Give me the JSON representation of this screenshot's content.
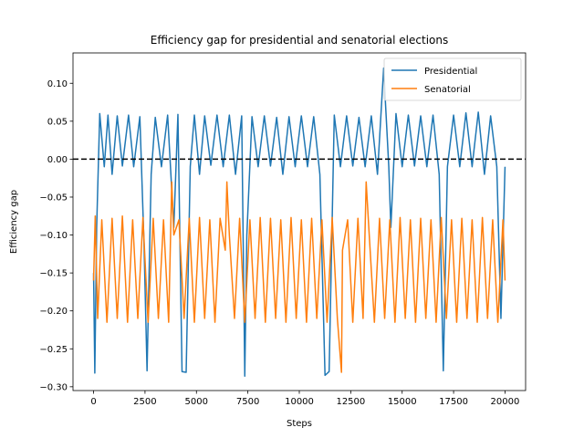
{
  "chart_data": {
    "type": "line",
    "title": "Efficiency gap for presidential and senatorial elections",
    "xlabel": "Steps",
    "ylabel": "Efficiency gap",
    "xlim": [
      -1000,
      21000
    ],
    "ylim": [
      -0.305,
      0.14
    ],
    "xticks": [
      0,
      2500,
      5000,
      7500,
      10000,
      12500,
      15000,
      17500,
      20000
    ],
    "xtick_labels": [
      "0",
      "2500",
      "5000",
      "7500",
      "10000",
      "12500",
      "15000",
      "17500",
      "20000"
    ],
    "yticks": [
      0.1,
      0.05,
      0.0,
      -0.05,
      -0.1,
      -0.15,
      -0.2,
      -0.25,
      -0.3
    ],
    "ytick_labels": [
      "0.10",
      "0.05",
      "0.00",
      "−0.05",
      "−0.10",
      "−0.15",
      "−0.20",
      "−0.25",
      "−0.30"
    ],
    "reference_line": {
      "y": 0.0,
      "style": "dashed",
      "color": "#000000"
    },
    "legend_position": "top-right",
    "grid": false,
    "series": [
      {
        "name": "Presidential",
        "color": "#1f77b4",
        "x": [
          0,
          60,
          150,
          300,
          520,
          700,
          900,
          1150,
          1400,
          1700,
          1950,
          2250,
          2450,
          2600,
          2800,
          3000,
          3300,
          3600,
          3900,
          4100,
          4300,
          4500,
          4700,
          4900,
          5150,
          5400,
          5700,
          6000,
          6300,
          6600,
          6900,
          7200,
          7350,
          7450,
          7700,
          8000,
          8300,
          8600,
          8900,
          9200,
          9500,
          9800,
          10100,
          10400,
          10700,
          11000,
          11250,
          11450,
          11700,
          12000,
          12300,
          12600,
          12900,
          13200,
          13500,
          13800,
          14100,
          14350,
          14450,
          14700,
          15000,
          15300,
          15600,
          15900,
          16200,
          16500,
          16800,
          17000,
          17200,
          17500,
          17800,
          18100,
          18400,
          18700,
          19000,
          19300,
          19600,
          19800,
          20000
        ],
        "values": [
          -0.15,
          -0.282,
          -0.09,
          0.06,
          -0.01,
          0.058,
          -0.02,
          0.057,
          -0.009,
          0.058,
          -0.01,
          0.056,
          -0.11,
          -0.279,
          -0.02,
          0.055,
          -0.01,
          0.058,
          -0.09,
          0.059,
          -0.28,
          -0.281,
          -0.01,
          0.058,
          -0.02,
          0.057,
          -0.008,
          0.058,
          -0.01,
          0.058,
          -0.02,
          0.057,
          -0.286,
          -0.1,
          0.056,
          -0.01,
          0.057,
          -0.009,
          0.055,
          -0.02,
          0.056,
          -0.01,
          0.057,
          -0.01,
          0.056,
          -0.02,
          -0.285,
          -0.28,
          0.058,
          -0.01,
          0.057,
          -0.009,
          0.055,
          -0.01,
          0.057,
          -0.02,
          0.12,
          -0.01,
          -0.09,
          0.06,
          -0.01,
          0.058,
          -0.009,
          0.057,
          -0.01,
          0.058,
          -0.02,
          -0.279,
          -0.01,
          0.058,
          -0.01,
          0.061,
          -0.01,
          0.062,
          -0.02,
          0.057,
          -0.01,
          -0.21,
          -0.01
        ]
      },
      {
        "name": "Senatorial",
        "color": "#ff7f0e",
        "x": [
          0,
          80,
          200,
          400,
          650,
          900,
          1150,
          1400,
          1650,
          1900,
          2150,
          2400,
          2650,
          2900,
          3150,
          3400,
          3650,
          3800,
          3900,
          4150,
          4400,
          4650,
          4900,
          5150,
          5400,
          5650,
          5900,
          6150,
          6400,
          6480,
          6600,
          6850,
          7100,
          7350,
          7600,
          7850,
          8100,
          8350,
          8600,
          8850,
          9100,
          9350,
          9600,
          9850,
          10100,
          10350,
          10600,
          10850,
          11100,
          11350,
          11600,
          11850,
          12050,
          12100,
          12350,
          12600,
          12850,
          13100,
          13250,
          13400,
          13650,
          13900,
          14150,
          14400,
          14650,
          14900,
          15150,
          15400,
          15650,
          15900,
          16150,
          16400,
          16650,
          16900,
          17150,
          17400,
          17650,
          17900,
          18150,
          18400,
          18650,
          18900,
          19150,
          19400,
          19650,
          19900,
          20000
        ],
        "values": [
          -0.16,
          -0.075,
          -0.21,
          -0.08,
          -0.215,
          -0.078,
          -0.21,
          -0.075,
          -0.215,
          -0.08,
          -0.21,
          -0.077,
          -0.215,
          -0.078,
          -0.21,
          -0.08,
          -0.215,
          -0.03,
          -0.1,
          -0.08,
          -0.21,
          -0.078,
          -0.215,
          -0.077,
          -0.21,
          -0.08,
          -0.215,
          -0.078,
          -0.12,
          -0.03,
          -0.1,
          -0.21,
          -0.078,
          -0.215,
          -0.08,
          -0.21,
          -0.077,
          -0.215,
          -0.078,
          -0.21,
          -0.08,
          -0.215,
          -0.077,
          -0.21,
          -0.08,
          -0.215,
          -0.078,
          -0.21,
          -0.08,
          -0.215,
          -0.077,
          -0.21,
          -0.281,
          -0.12,
          -0.08,
          -0.215,
          -0.078,
          -0.21,
          -0.03,
          -0.1,
          -0.215,
          -0.078,
          -0.21,
          -0.08,
          -0.215,
          -0.077,
          -0.21,
          -0.08,
          -0.215,
          -0.078,
          -0.21,
          -0.08,
          -0.215,
          -0.077,
          -0.21,
          -0.08,
          -0.215,
          -0.078,
          -0.21,
          -0.08,
          -0.215,
          -0.077,
          -0.21,
          -0.08,
          -0.215,
          -0.08,
          -0.16
        ]
      }
    ]
  }
}
